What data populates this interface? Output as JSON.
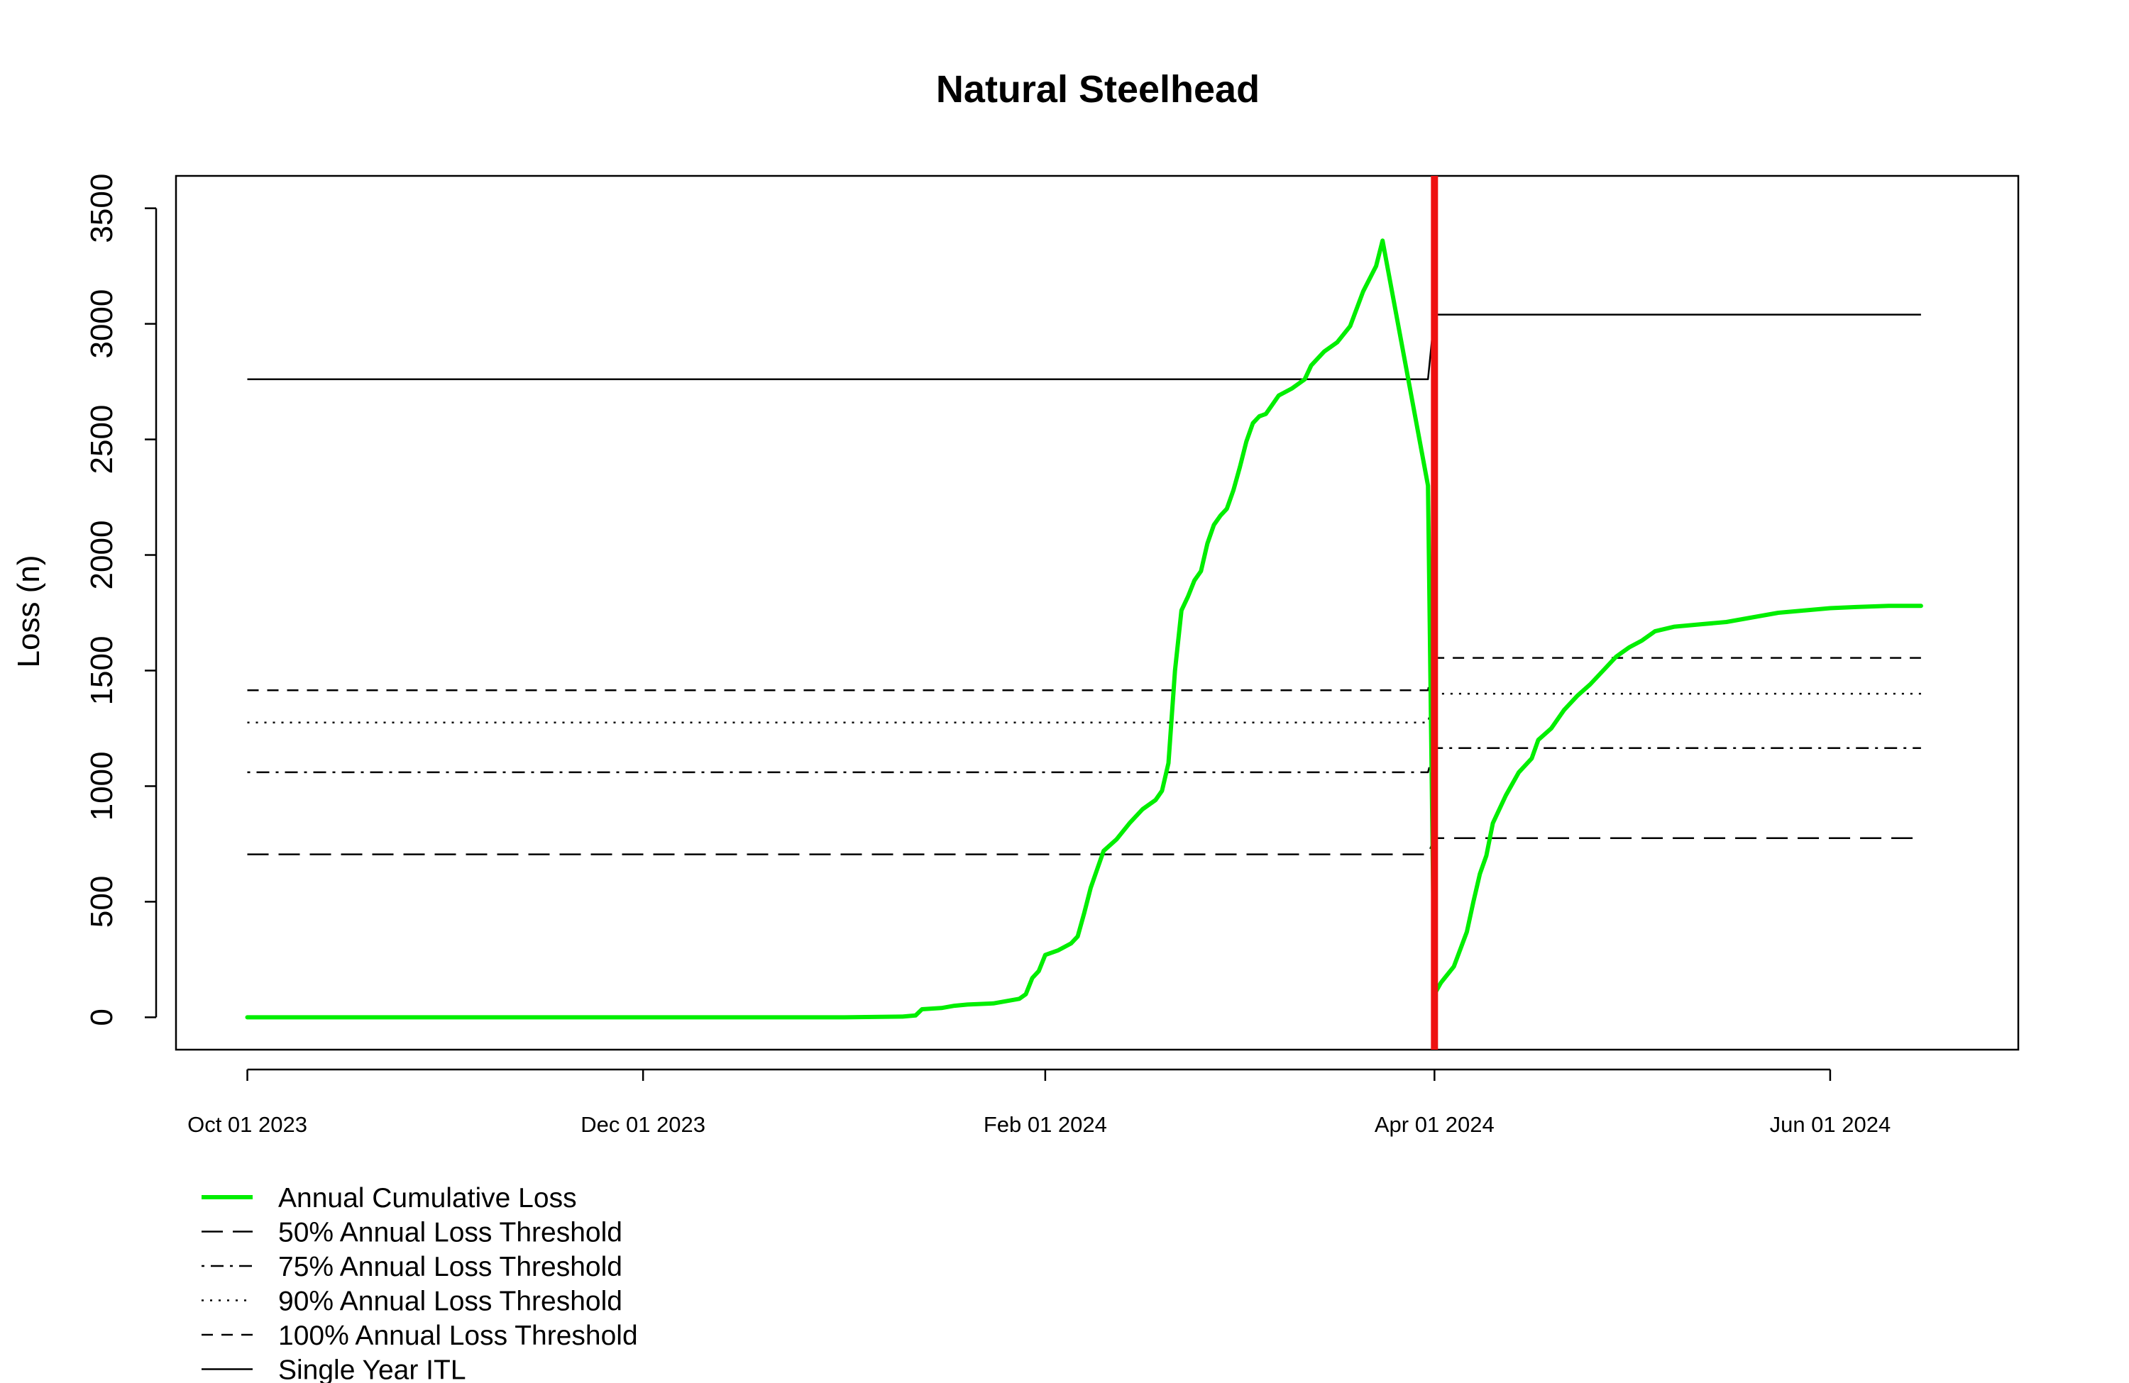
{
  "chart_data": {
    "type": "line",
    "title": "Natural Steelhead",
    "xlabel": "",
    "ylabel": "Loss (n)",
    "ylim": [
      -140,
      3640
    ],
    "xlim": [
      "2023-09-20",
      "2024-06-30"
    ],
    "y_ticks": [
      0,
      500,
      1000,
      1500,
      2000,
      2500,
      3000,
      3500
    ],
    "x_ticks": [
      {
        "date": "2023-10-01",
        "label": "Oct 01 2023"
      },
      {
        "date": "2023-12-01",
        "label": "Dec 01 2023"
      },
      {
        "date": "2024-02-01",
        "label": "Feb 01 2024"
      },
      {
        "date": "2024-04-01",
        "label": "Apr 01 2024"
      },
      {
        "date": "2024-06-01",
        "label": "Jun 01 2024"
      }
    ],
    "vertical_marker": {
      "date": "2024-04-01",
      "color": "#ee1111"
    },
    "grid": false,
    "legend_position": "bottom-left, below plot",
    "series": [
      {
        "name": "Annual Cumulative Loss",
        "color": "#00ee00",
        "style": "solid",
        "points": [
          [
            "2023-10-01",
            0
          ],
          [
            "2024-01-01",
            0
          ],
          [
            "2024-01-10",
            3
          ],
          [
            "2024-01-12",
            8
          ],
          [
            "2024-01-13",
            35
          ],
          [
            "2024-01-16",
            40
          ],
          [
            "2024-01-18",
            50
          ],
          [
            "2024-01-20",
            55
          ],
          [
            "2024-01-24",
            60
          ],
          [
            "2024-01-28",
            80
          ],
          [
            "2024-01-29",
            100
          ],
          [
            "2024-01-30",
            170
          ],
          [
            "2024-01-31",
            200
          ],
          [
            "2024-02-01",
            270
          ],
          [
            "2024-02-03",
            290
          ],
          [
            "2024-02-05",
            320
          ],
          [
            "2024-02-06",
            350
          ],
          [
            "2024-02-07",
            450
          ],
          [
            "2024-02-08",
            560
          ],
          [
            "2024-02-09",
            640
          ],
          [
            "2024-02-10",
            720
          ],
          [
            "2024-02-12",
            770
          ],
          [
            "2024-02-14",
            840
          ],
          [
            "2024-02-16",
            900
          ],
          [
            "2024-02-18",
            940
          ],
          [
            "2024-02-19",
            980
          ],
          [
            "2024-02-20",
            1100
          ],
          [
            "2024-02-21",
            1500
          ],
          [
            "2024-02-22",
            1760
          ],
          [
            "2024-02-23",
            1820
          ],
          [
            "2024-02-24",
            1890
          ],
          [
            "2024-02-25",
            1930
          ],
          [
            "2024-02-26",
            2050
          ],
          [
            "2024-02-27",
            2130
          ],
          [
            "2024-02-28",
            2170
          ],
          [
            "2024-02-29",
            2200
          ],
          [
            "2024-03-01",
            2280
          ],
          [
            "2024-03-02",
            2380
          ],
          [
            "2024-03-03",
            2490
          ],
          [
            "2024-03-04",
            2570
          ],
          [
            "2024-03-05",
            2600
          ],
          [
            "2024-03-06",
            2610
          ],
          [
            "2024-03-07",
            2650
          ],
          [
            "2024-03-08",
            2690
          ],
          [
            "2024-03-10",
            2720
          ],
          [
            "2024-03-12",
            2760
          ],
          [
            "2024-03-13",
            2820
          ],
          [
            "2024-03-15",
            2880
          ],
          [
            "2024-03-17",
            2920
          ],
          [
            "2024-03-19",
            2990
          ],
          [
            "2024-03-21",
            3140
          ],
          [
            "2024-03-23",
            3250
          ],
          [
            "2024-03-24",
            3360
          ],
          [
            "2024-03-31",
            2300
          ],
          [
            "2024-04-01",
            100
          ],
          [
            "2024-04-02",
            150
          ],
          [
            "2024-04-04",
            220
          ],
          [
            "2024-04-06",
            370
          ],
          [
            "2024-04-07",
            500
          ],
          [
            "2024-04-08",
            620
          ],
          [
            "2024-04-09",
            700
          ],
          [
            "2024-04-10",
            840
          ],
          [
            "2024-04-12",
            960
          ],
          [
            "2024-04-14",
            1060
          ],
          [
            "2024-04-16",
            1120
          ],
          [
            "2024-04-17",
            1200
          ],
          [
            "2024-04-19",
            1250
          ],
          [
            "2024-04-21",
            1330
          ],
          [
            "2024-04-23",
            1390
          ],
          [
            "2024-04-25",
            1440
          ],
          [
            "2024-04-27",
            1500
          ],
          [
            "2024-04-29",
            1560
          ],
          [
            "2024-05-01",
            1600
          ],
          [
            "2024-05-03",
            1630
          ],
          [
            "2024-05-05",
            1670
          ],
          [
            "2024-05-08",
            1690
          ],
          [
            "2024-05-12",
            1700
          ],
          [
            "2024-05-16",
            1710
          ],
          [
            "2024-05-20",
            1730
          ],
          [
            "2024-05-24",
            1750
          ],
          [
            "2024-05-28",
            1760
          ],
          [
            "2024-06-01",
            1770
          ],
          [
            "2024-06-05",
            1775
          ],
          [
            "2024-06-10",
            1780
          ],
          [
            "2024-06-15",
            1780
          ]
        ]
      },
      {
        "name": "50% Annual Loss Threshold",
        "color": "#000000",
        "style": "longdash",
        "points": [
          [
            "2023-10-01",
            705
          ],
          [
            "2024-03-31",
            705
          ],
          [
            "2024-04-01",
            775
          ],
          [
            "2024-06-15",
            775
          ]
        ]
      },
      {
        "name": "75% Annual Loss Threshold",
        "color": "#000000",
        "style": "dotdash",
        "points": [
          [
            "2023-10-01",
            1060
          ],
          [
            "2024-03-31",
            1060
          ],
          [
            "2024-04-01",
            1165
          ],
          [
            "2024-06-15",
            1165
          ]
        ]
      },
      {
        "name": "90% Annual Loss Threshold",
        "color": "#000000",
        "style": "dotted",
        "points": [
          [
            "2023-10-01",
            1275
          ],
          [
            "2024-03-31",
            1275
          ],
          [
            "2024-04-01",
            1400
          ],
          [
            "2024-06-15",
            1400
          ]
        ]
      },
      {
        "name": "100% Annual Loss Threshold",
        "color": "#000000",
        "style": "dashed",
        "points": [
          [
            "2023-10-01",
            1415
          ],
          [
            "2024-03-31",
            1415
          ],
          [
            "2024-04-01",
            1555
          ],
          [
            "2024-06-15",
            1555
          ]
        ]
      },
      {
        "name": "Single Year ITL",
        "color": "#000000",
        "style": "solid",
        "points": [
          [
            "2023-10-01",
            2760
          ],
          [
            "2024-03-31",
            2760
          ],
          [
            "2024-04-01",
            3040
          ],
          [
            "2024-06-15",
            3040
          ]
        ]
      }
    ]
  }
}
